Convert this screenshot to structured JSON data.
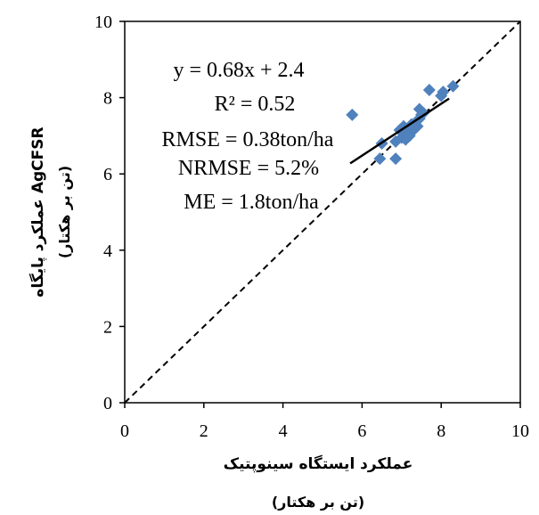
{
  "chart_data": {
    "type": "scatter",
    "x_range": [
      0,
      10
    ],
    "y_range": [
      0,
      10
    ],
    "x_ticks": [
      "0",
      "2",
      "4",
      "6",
      "8",
      "10"
    ],
    "y_ticks": [
      "0",
      "2",
      "4",
      "6",
      "8",
      "10"
    ],
    "xlabel": "عملکرد ایستگاه سینوپتیک",
    "xlabel_unit": "(تن بر هکتار)",
    "ylabel": "عملکرد پایگاه AgCFSR",
    "ylabel_unit": "(تن بر هکتار)",
    "grid": false,
    "marker": "diamond",
    "marker_color": "#4f81bd",
    "points": [
      {
        "x": 5.75,
        "y": 7.55
      },
      {
        "x": 6.45,
        "y": 6.4
      },
      {
        "x": 6.5,
        "y": 6.8
      },
      {
        "x": 6.85,
        "y": 6.4
      },
      {
        "x": 6.85,
        "y": 6.85
      },
      {
        "x": 6.95,
        "y": 7.15
      },
      {
        "x": 7.0,
        "y": 6.95
      },
      {
        "x": 7.05,
        "y": 7.25
      },
      {
        "x": 7.1,
        "y": 6.9
      },
      {
        "x": 7.15,
        "y": 7.1
      },
      {
        "x": 7.2,
        "y": 7.0
      },
      {
        "x": 7.25,
        "y": 7.3
      },
      {
        "x": 7.3,
        "y": 7.15
      },
      {
        "x": 7.35,
        "y": 7.35
      },
      {
        "x": 7.4,
        "y": 7.25
      },
      {
        "x": 7.45,
        "y": 7.45
      },
      {
        "x": 7.45,
        "y": 7.7
      },
      {
        "x": 7.5,
        "y": 7.55
      },
      {
        "x": 7.55,
        "y": 7.6
      },
      {
        "x": 7.7,
        "y": 8.2
      },
      {
        "x": 8.0,
        "y": 8.05
      },
      {
        "x": 8.05,
        "y": 8.15
      },
      {
        "x": 8.3,
        "y": 8.3
      }
    ],
    "trendline": {
      "x": [
        5.7,
        8.2
      ],
      "slope": 0.68,
      "intercept": 2.4,
      "color": "#000000"
    },
    "reference_line": {
      "from": [
        0,
        0
      ],
      "to": [
        10,
        10
      ],
      "style": "dashed",
      "color": "#000000"
    },
    "annotations": [
      "y = 0.68x + 2.4",
      "R² = 0.52",
      "RMSE = 0.38ton/ha",
      "NRMSE = 5.2%",
      "ME = 1.8ton/ha"
    ]
  }
}
